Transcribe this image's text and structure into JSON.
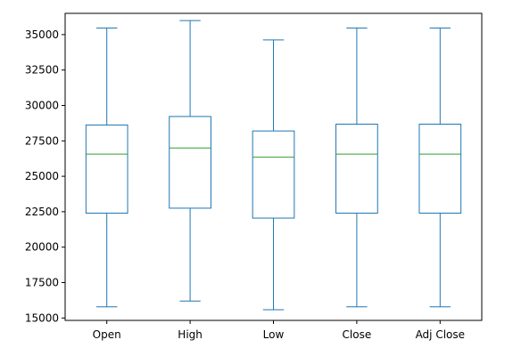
{
  "chart_data": {
    "type": "box",
    "title": "",
    "xlabel": "",
    "ylabel": "",
    "categories": [
      "Open",
      "High",
      "Low",
      "Close",
      "Adj Close"
    ],
    "ylim": [
      14830,
      36500
    ],
    "yticks": [
      15000,
      17500,
      20000,
      22500,
      25000,
      27500,
      30000,
      32500,
      35000
    ],
    "ytick_labels": [
      "15000",
      "17500",
      "20000",
      "22500",
      "25000",
      "27500",
      "30000",
      "32500",
      "35000"
    ],
    "grid": false,
    "legend": "none",
    "boxes": [
      {
        "name": "Open",
        "min": 15790,
        "q1": 22400,
        "median": 26570,
        "q3": 28620,
        "max": 35460
      },
      {
        "name": "High",
        "min": 16200,
        "q1": 22750,
        "median": 27000,
        "q3": 29220,
        "max": 35990
      },
      {
        "name": "Low",
        "min": 15580,
        "q1": 22050,
        "median": 26350,
        "q3": 28200,
        "max": 34620
      },
      {
        "name": "Close",
        "min": 15790,
        "q1": 22400,
        "median": 26570,
        "q3": 28680,
        "max": 35460
      },
      {
        "name": "Adj Close",
        "min": 15790,
        "q1": 22400,
        "median": 26570,
        "q3": 28680,
        "max": 35460
      }
    ],
    "colors": {
      "box": "#1f77b4",
      "median": "#2ca02c",
      "axis": "#000000"
    }
  }
}
